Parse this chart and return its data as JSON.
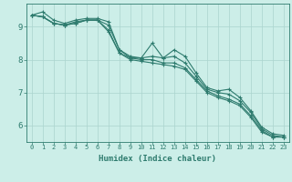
{
  "x": [
    0,
    1,
    2,
    3,
    4,
    5,
    6,
    7,
    8,
    9,
    10,
    11,
    12,
    13,
    14,
    15,
    16,
    17,
    18,
    19,
    20,
    21,
    22,
    23
  ],
  "line1": [
    9.35,
    9.45,
    9.2,
    9.1,
    9.2,
    9.25,
    9.25,
    9.15,
    8.3,
    8.05,
    8.05,
    8.5,
    8.05,
    8.3,
    8.1,
    7.6,
    7.15,
    7.05,
    7.1,
    6.85,
    6.45,
    5.95,
    5.75,
    5.7
  ],
  "line2": [
    9.35,
    9.3,
    9.1,
    9.05,
    9.15,
    9.2,
    9.2,
    9.05,
    8.3,
    8.1,
    8.05,
    8.1,
    8.05,
    8.1,
    7.9,
    7.5,
    7.1,
    7.0,
    6.95,
    6.75,
    6.4,
    5.9,
    5.7,
    5.65
  ],
  "line3": [
    9.35,
    9.3,
    9.1,
    9.05,
    9.1,
    9.2,
    9.2,
    8.9,
    8.2,
    8.05,
    8.0,
    8.0,
    7.9,
    7.9,
    7.75,
    7.4,
    7.05,
    6.9,
    6.8,
    6.65,
    6.3,
    5.85,
    5.65,
    5.65
  ],
  "line4": [
    9.35,
    9.3,
    9.1,
    9.05,
    9.1,
    9.2,
    9.2,
    8.85,
    8.2,
    8.0,
    7.95,
    7.9,
    7.85,
    7.8,
    7.7,
    7.35,
    7.0,
    6.85,
    6.75,
    6.6,
    6.25,
    5.8,
    5.65,
    5.65
  ],
  "color": "#2e7b6e",
  "bg_color": "#cceee8",
  "grid_color": "#aad4ce",
  "axis_color": "#2e7b6e",
  "xlabel": "Humidex (Indice chaleur)",
  "ylim": [
    5.5,
    9.7
  ],
  "xlim": [
    -0.5,
    23.5
  ],
  "yticks": [
    6,
    7,
    8,
    9
  ],
  "xticks": [
    0,
    1,
    2,
    3,
    4,
    5,
    6,
    7,
    8,
    9,
    10,
    11,
    12,
    13,
    14,
    15,
    16,
    17,
    18,
    19,
    20,
    21,
    22,
    23
  ],
  "marker": "+",
  "markersize": 3,
  "linewidth": 0.8
}
